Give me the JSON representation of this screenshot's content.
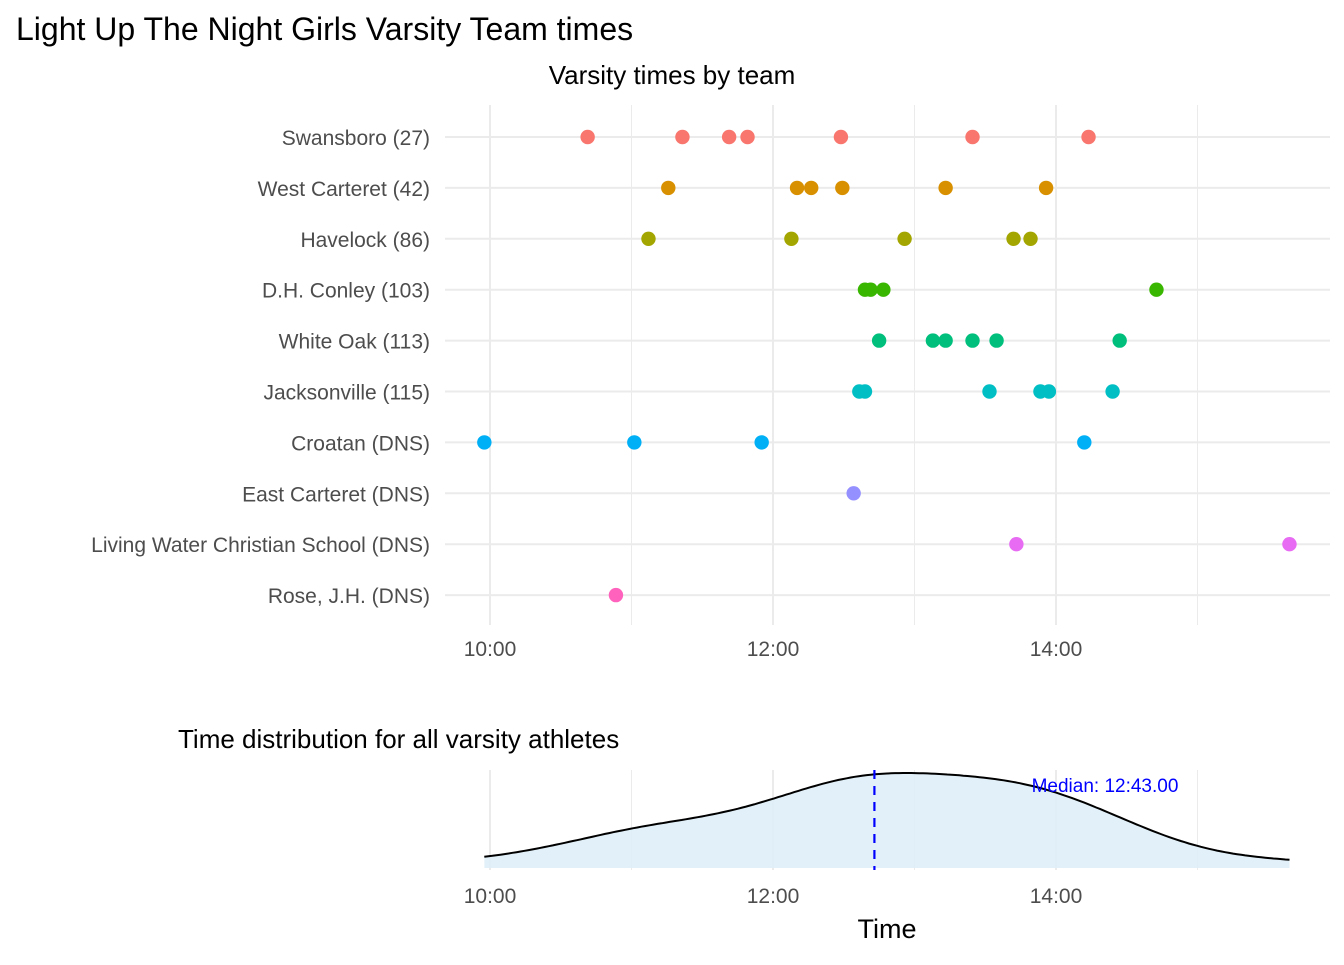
{
  "title": "Light Up The Night Girls Varsity Team times",
  "chart_data": [
    {
      "type": "scatter",
      "title": "Varsity times by team",
      "xlabel": "",
      "ylabel": "",
      "x_unit": "minutes",
      "xlim": [
        9.85,
        15.8
      ],
      "x_ticks": [
        {
          "value": 10,
          "label": "10:00"
        },
        {
          "value": 12,
          "label": "12:00"
        },
        {
          "value": 14,
          "label": "14:00"
        }
      ],
      "grid": true,
      "series": [
        {
          "name": "Swansboro (27)",
          "color": "#F8766D",
          "values": [
            10.69,
            11.36,
            11.69,
            11.82,
            12.48,
            13.41,
            14.23
          ]
        },
        {
          "name": "West Carteret (42)",
          "color": "#D89000",
          "values": [
            11.26,
            12.17,
            12.27,
            12.49,
            13.22,
            13.93
          ]
        },
        {
          "name": "Havelock (86)",
          "color": "#A3A500",
          "values": [
            11.12,
            12.13,
            12.93,
            13.7,
            13.82
          ]
        },
        {
          "name": "D.H. Conley (103)",
          "color": "#39B600",
          "values": [
            12.65,
            12.69,
            12.78,
            14.71
          ]
        },
        {
          "name": "White Oak (113)",
          "color": "#00BF7D",
          "values": [
            12.75,
            13.13,
            13.22,
            13.41,
            13.58,
            14.45
          ]
        },
        {
          "name": "Jacksonville (115)",
          "color": "#00BFC4",
          "values": [
            12.61,
            12.65,
            13.53,
            13.89,
            13.95,
            14.4
          ]
        },
        {
          "name": "Croatan (DNS)",
          "color": "#00B0F6",
          "values": [
            9.96,
            11.02,
            11.92,
            14.2
          ]
        },
        {
          "name": "East Carteret (DNS)",
          "color": "#9590FF",
          "values": [
            12.57
          ]
        },
        {
          "name": "Living Water Christian School (DNS)",
          "color": "#E76BF3",
          "values": [
            13.72,
            15.65
          ]
        },
        {
          "name": "Rose, J.H. (DNS)",
          "color": "#FF62BC",
          "values": [
            10.89
          ]
        }
      ]
    },
    {
      "type": "area",
      "title": "Time distribution for all varsity athletes",
      "xlabel": "Time",
      "ylabel": "",
      "xlim": [
        9.85,
        15.8
      ],
      "x_ticks": [
        {
          "value": 10,
          "label": "10:00"
        },
        {
          "value": 12,
          "label": "12:00"
        },
        {
          "value": 14,
          "label": "14:00"
        }
      ],
      "fill_color": "#DFF0F8",
      "median": {
        "value": 12.7167,
        "label": "Median: 12:43.00",
        "color": "#0000FF"
      }
    }
  ]
}
